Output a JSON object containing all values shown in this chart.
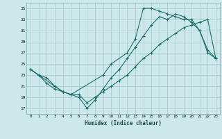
{
  "xlabel": "Humidex (Indice chaleur)",
  "bg_color": "#cce8ea",
  "grid_color": "#aacdd0",
  "line_color": "#1a6e6a",
  "xlim": [
    -0.5,
    23.5
  ],
  "ylim": [
    16,
    36
  ],
  "xticks": [
    0,
    1,
    2,
    3,
    4,
    5,
    6,
    7,
    8,
    9,
    10,
    11,
    12,
    13,
    14,
    15,
    16,
    17,
    18,
    19,
    20,
    21,
    22,
    23
  ],
  "yticks": [
    17,
    19,
    21,
    23,
    25,
    27,
    29,
    31,
    33,
    35
  ],
  "line1_x": [
    0,
    1,
    2,
    3,
    4,
    5,
    6,
    7,
    8,
    9,
    10,
    11,
    12,
    13,
    14,
    15,
    16,
    17,
    18,
    19,
    20,
    21,
    22,
    23
  ],
  "line1_y": [
    24,
    23,
    22.5,
    21,
    20,
    19.5,
    19.5,
    18,
    19,
    20,
    21,
    22,
    23,
    24.5,
    26,
    27,
    28.5,
    29.5,
    30.5,
    31.5,
    32,
    32.5,
    33,
    26
  ],
  "line2_x": [
    0,
    1,
    3,
    4,
    5,
    9,
    10,
    12,
    13,
    14,
    15,
    16,
    17,
    18,
    19,
    20,
    21,
    22,
    23
  ],
  "line2_y": [
    24,
    23,
    21,
    20,
    19.5,
    23,
    25,
    27,
    29.5,
    35,
    35,
    34.5,
    34,
    33.5,
    33,
    33,
    31,
    27,
    26
  ],
  "line3_x": [
    0,
    1,
    2,
    3,
    4,
    5,
    6,
    7,
    8,
    9,
    10,
    11,
    12,
    13,
    14,
    15,
    16,
    17,
    18,
    19,
    20,
    21,
    22,
    23
  ],
  "line3_y": [
    24,
    23,
    21.5,
    20.5,
    20,
    19.5,
    19,
    17,
    18.5,
    20.5,
    22.5,
    24,
    26,
    28,
    30,
    32,
    33.5,
    33,
    34,
    33.5,
    32.5,
    31,
    27.5,
    26
  ]
}
